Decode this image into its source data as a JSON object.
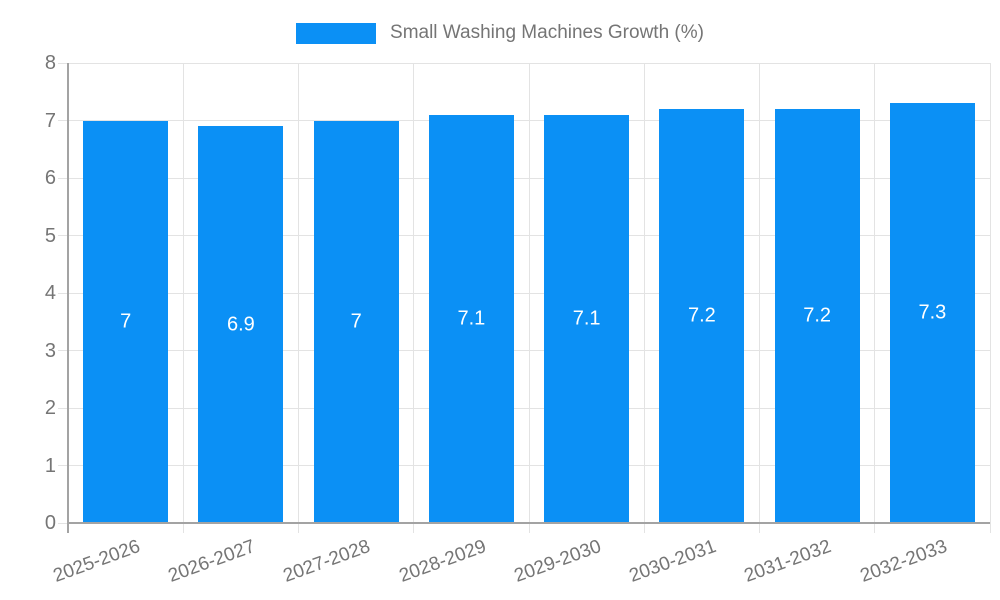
{
  "legend": {
    "label": "Small Washing Machines Growth (%)"
  },
  "chart_data": {
    "type": "bar",
    "title": "Small Washing Machines Growth (%)",
    "categories": [
      "2025-2026",
      "2026-2027",
      "2027-2028",
      "2028-2029",
      "2029-2030",
      "2030-2031",
      "2031-2032",
      "2032-2033"
    ],
    "values": [
      7,
      6.9,
      7,
      7.1,
      7.1,
      7.2,
      7.2,
      7.3
    ],
    "value_labels": [
      "7",
      "6.9",
      "7",
      "7.1",
      "7.1",
      "7.2",
      "7.2",
      "7.3"
    ],
    "xlabel": "",
    "ylabel": "",
    "ylim": [
      0,
      8
    ],
    "yticks": [
      0,
      1,
      2,
      3,
      4,
      5,
      6,
      7,
      8
    ],
    "grid": true,
    "legend_position": "top",
    "colors": {
      "bar": "#0b90f5",
      "bar_label": "#ffffff",
      "grid": "#e3e3e3",
      "axis": "#a3a3a3",
      "text": "#757575"
    }
  }
}
